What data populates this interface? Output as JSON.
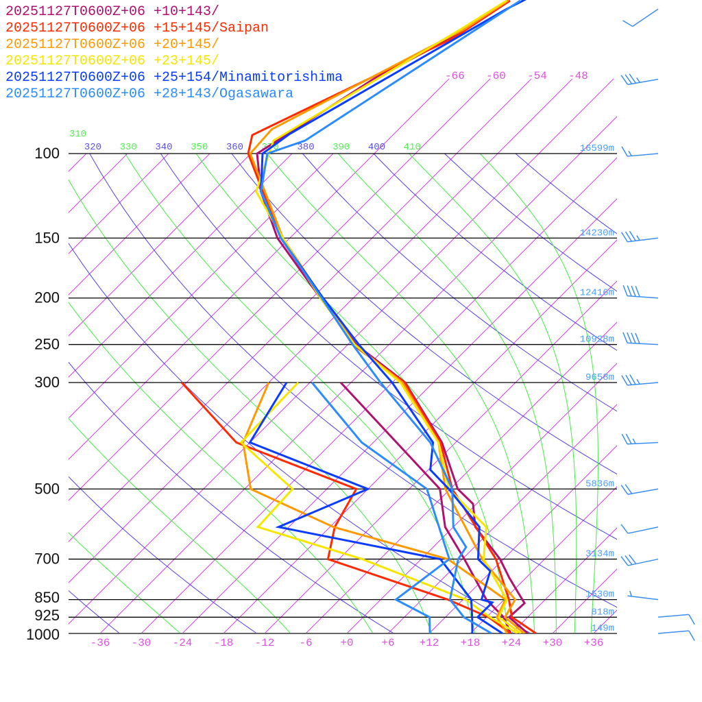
{
  "chart_data": {
    "type": "line",
    "subtype": "skew-T log-p sounding",
    "x_unit": "°C",
    "y_unit": "hPa",
    "y_scale": "log",
    "ylim": [
      1000,
      48
    ],
    "xlim_at_1000hPa": [
      -40,
      39
    ],
    "grid": true,
    "legend_placement": "top-left",
    "pressure_levels": [
      {
        "p": 100,
        "label": "100",
        "height": "16599m"
      },
      {
        "p": 150,
        "label": "150",
        "height": "14230m"
      },
      {
        "p": 200,
        "label": "200",
        "height": "12416m"
      },
      {
        "p": 250,
        "label": "250",
        "height": "10928m"
      },
      {
        "p": 300,
        "label": "300",
        "height": "9658m"
      },
      {
        "p": 500,
        "label": "500",
        "height": "5836m"
      },
      {
        "p": 700,
        "label": "700",
        "height": "3134m"
      },
      {
        "p": 850,
        "label": "850",
        "height": "1530m"
      },
      {
        "p": 925,
        "label": "925",
        "height": "818m"
      },
      {
        "p": 1000,
        "label": "1000",
        "height": "149m"
      }
    ],
    "x_tick_labels": [
      {
        "t": -36,
        "label": "-36"
      },
      {
        "t": -30,
        "label": "-30"
      },
      {
        "t": -24,
        "label": "-24"
      },
      {
        "t": -18,
        "label": "-18"
      },
      {
        "t": -12,
        "label": "-12"
      },
      {
        "t": -6,
        "label": "-6"
      },
      {
        "t": 0,
        "label": "+0"
      },
      {
        "t": 6,
        "label": "+6"
      },
      {
        "t": 12,
        "label": "+12"
      },
      {
        "t": 18,
        "label": "+18"
      },
      {
        "t": 24,
        "label": "+24"
      },
      {
        "t": 30,
        "label": "+30"
      },
      {
        "t": 36,
        "label": "+36"
      }
    ],
    "isotherm_top_labels": [
      {
        "t": -66,
        "label": "-66"
      },
      {
        "t": -60,
        "label": "-60"
      },
      {
        "t": -54,
        "label": "-54"
      },
      {
        "t": -48,
        "label": "-48"
      }
    ],
    "adiabat_labels": [
      {
        "theta": 310,
        "label": "310",
        "kind": "moist"
      },
      {
        "theta": 320,
        "label": "320",
        "kind": "dry"
      },
      {
        "theta": 330,
        "label": "330",
        "kind": "moist"
      },
      {
        "theta": 340,
        "label": "340",
        "kind": "dry"
      },
      {
        "theta": 350,
        "label": "350",
        "kind": "moist"
      },
      {
        "theta": 360,
        "label": "360",
        "kind": "dry"
      },
      {
        "theta": 370,
        "label": "370",
        "kind": "moist"
      },
      {
        "theta": 380,
        "label": "380",
        "kind": "dry"
      },
      {
        "theta": 390,
        "label": "390",
        "kind": "moist"
      },
      {
        "theta": 400,
        "label": "400",
        "kind": "dry"
      },
      {
        "theta": 410,
        "label": "410",
        "kind": "moist"
      }
    ],
    "colors": {
      "isotherm": "#d040e0",
      "dry_adiabat": "#5040ee",
      "moist_adiabat": "#40ee40",
      "pressure_line": "#000000",
      "height_label": "#4a9eff",
      "wind_barb": "#3a8ef0"
    },
    "series": [
      {
        "name": "20251127T0600Z+06 +10+143/",
        "color": "#b0106e",
        "temperature": [
          [
            1000,
            26.4
          ],
          [
            925,
            21.3
          ],
          [
            865,
            21.5
          ],
          [
            766,
            15.6
          ],
          [
            700,
            11.5
          ],
          [
            600,
            3.2
          ],
          [
            537,
            -0.5
          ],
          [
            500,
            -4.9
          ],
          [
            400,
            -14
          ],
          [
            300,
            -28.1
          ],
          [
            250,
            -40.8
          ],
          [
            200,
            -52.8
          ],
          [
            150,
            -67.8
          ],
          [
            120,
            -77
          ],
          [
            100,
            -83.1
          ],
          [
            70,
            -77
          ],
          [
            57,
            -71.5
          ],
          [
            48,
            -68.8
          ]
        ],
        "dewpoint": [
          [
            1000,
            23.9
          ],
          [
            925,
            20.5
          ],
          [
            850,
            15.4
          ],
          [
            700,
            6.3
          ],
          [
            600,
            -1.2
          ],
          [
            500,
            -7.5
          ],
          [
            300,
            -37.5
          ]
        ]
      },
      {
        "name": "20251127T0600Z+06 +15+145/Saipan",
        "color": "#ff2a00",
        "temperature": [
          [
            1000,
            27.6
          ],
          [
            925,
            21.7
          ],
          [
            850,
            18.7
          ],
          [
            700,
            10.9
          ],
          [
            500,
            -5.7
          ],
          [
            400,
            -14.2
          ],
          [
            300,
            -28.2
          ],
          [
            250,
            -41.3
          ],
          [
            200,
            -52.6
          ],
          [
            150,
            -67.3
          ],
          [
            100,
            -84.4
          ],
          [
            91.5,
            -86.5
          ],
          [
            57.4,
            -71.3
          ],
          [
            48,
            -68.5
          ]
        ],
        "dewpoint": [
          [
            1000,
            23.9
          ],
          [
            925,
            18.3
          ],
          [
            850,
            9.8
          ],
          [
            700,
            -13.6
          ],
          [
            600,
            -17.3
          ],
          [
            500,
            -19.7
          ],
          [
            400,
            -44
          ],
          [
            300,
            -60.7
          ]
        ]
      },
      {
        "name": "20251127T0600Z+06 +20+145/",
        "color": "#ff9900",
        "temperature": [
          [
            1000,
            25.9
          ],
          [
            925,
            20.7
          ],
          [
            850,
            19.6
          ],
          [
            700,
            8.9
          ],
          [
            500,
            -6.7
          ],
          [
            400,
            -14.5
          ],
          [
            300,
            -28.5
          ],
          [
            250,
            -41
          ],
          [
            200,
            -52.5
          ],
          [
            150,
            -67
          ],
          [
            100,
            -84.1
          ],
          [
            89,
            -84.5
          ],
          [
            55,
            -71
          ],
          [
            48,
            -68.8
          ]
        ],
        "dewpoint": [
          [
            1000,
            23.4
          ],
          [
            925,
            19.5
          ],
          [
            850,
            18.2
          ],
          [
            700,
            3.9
          ],
          [
            600,
            -17.5
          ],
          [
            500,
            -35.1
          ],
          [
            400,
            -43
          ],
          [
            300,
            -48
          ]
        ]
      },
      {
        "name": "20251127T0600Z+06 +23+145/",
        "color": "#f5e600",
        "temperature": [
          [
            1000,
            25.4
          ],
          [
            925,
            19.8
          ],
          [
            850,
            18.4
          ],
          [
            700,
            9.1
          ],
          [
            600,
            4.8
          ],
          [
            500,
            -6.2
          ],
          [
            400,
            -14.5
          ],
          [
            300,
            -28.8
          ],
          [
            250,
            -41
          ],
          [
            200,
            -52.8
          ],
          [
            150,
            -67
          ],
          [
            120,
            -77.7
          ],
          [
            94,
            -82.6
          ],
          [
            55,
            -71.5
          ],
          [
            48,
            -69
          ]
        ],
        "dewpoint": [
          [
            1000,
            24.9
          ],
          [
            925,
            18.5
          ],
          [
            850,
            12.4
          ],
          [
            700,
            -8.6
          ],
          [
            600,
            -28.5
          ],
          [
            500,
            -29
          ],
          [
            400,
            -43.3
          ],
          [
            300,
            -43.7
          ]
        ]
      },
      {
        "name": "20251127T0600Z+06 +25+154/Minamitorishima",
        "color": "#0a3cff",
        "temperature": [
          [
            1000,
            22.7
          ],
          [
            925,
            16.7
          ],
          [
            862,
            16.7
          ],
          [
            850,
            14.7
          ],
          [
            741,
            11.8
          ],
          [
            700,
            8.3
          ],
          [
            600,
            3.8
          ],
          [
            500,
            -6.2
          ],
          [
            456,
            -11.7
          ],
          [
            400,
            -15.3
          ],
          [
            300,
            -30
          ],
          [
            250,
            -40.4
          ],
          [
            200,
            -52.4
          ],
          [
            150,
            -67.3
          ],
          [
            120,
            -77
          ],
          [
            100,
            -82.3
          ],
          [
            91,
            -81.2
          ],
          [
            50,
            -67.8
          ],
          [
            47,
            -66
          ]
        ],
        "dewpoint": [
          [
            1000,
            18.3
          ],
          [
            925,
            15.9
          ],
          [
            850,
            13.2
          ],
          [
            700,
            2.8
          ],
          [
            600,
            -25.5
          ],
          [
            500,
            -18
          ],
          [
            400,
            -42
          ],
          [
            300,
            -45.4
          ]
        ]
      },
      {
        "name": "20251127T0600Z+06 +28+143/Ogasawara",
        "color": "#2a8cff",
        "temperature": [
          [
            1000,
            21.1
          ],
          [
            925,
            14.7
          ],
          [
            850,
            10.1
          ],
          [
            700,
            5.4
          ],
          [
            661,
            4.8
          ],
          [
            600,
            0
          ],
          [
            500,
            -5.7
          ],
          [
            400,
            -15.7
          ],
          [
            300,
            -31.7
          ],
          [
            250,
            -41.3
          ],
          [
            200,
            -52.6
          ],
          [
            150,
            -67.3
          ],
          [
            120,
            -77
          ],
          [
            100,
            -81.6
          ],
          [
            94,
            -78
          ],
          [
            48,
            -67
          ]
        ],
        "dewpoint": [
          [
            1000,
            12.1
          ],
          [
            925,
            9.7
          ],
          [
            850,
            2.2
          ],
          [
            700,
            4.1
          ],
          [
            500,
            -9.4
          ],
          [
            400,
            -25.7
          ],
          [
            300,
            -41.7
          ]
        ]
      }
    ],
    "wind_barbs": [
      {
        "p": 50,
        "direction": 236,
        "speed_kt": 10
      },
      {
        "p": 70,
        "direction": 260,
        "speed_kt": 35
      },
      {
        "p": 100,
        "direction": 265,
        "speed_kt": 15
      },
      {
        "p": 150,
        "direction": 263,
        "speed_kt": 35
      },
      {
        "p": 200,
        "direction": 274,
        "speed_kt": 40
      },
      {
        "p": 250,
        "direction": 273,
        "speed_kt": 40
      },
      {
        "p": 300,
        "direction": 265,
        "speed_kt": 35
      },
      {
        "p": 400,
        "direction": 267,
        "speed_kt": 25
      },
      {
        "p": 500,
        "direction": 260,
        "speed_kt": 20
      },
      {
        "p": 600,
        "direction": 258,
        "speed_kt": 10
      },
      {
        "p": 700,
        "direction": 258,
        "speed_kt": 30
      },
      {
        "p": 850,
        "direction": 277,
        "speed_kt": 5
      },
      {
        "p": 925,
        "direction": 85,
        "speed_kt": 10
      },
      {
        "p": 1000,
        "direction": 85,
        "speed_kt": 10
      }
    ]
  }
}
